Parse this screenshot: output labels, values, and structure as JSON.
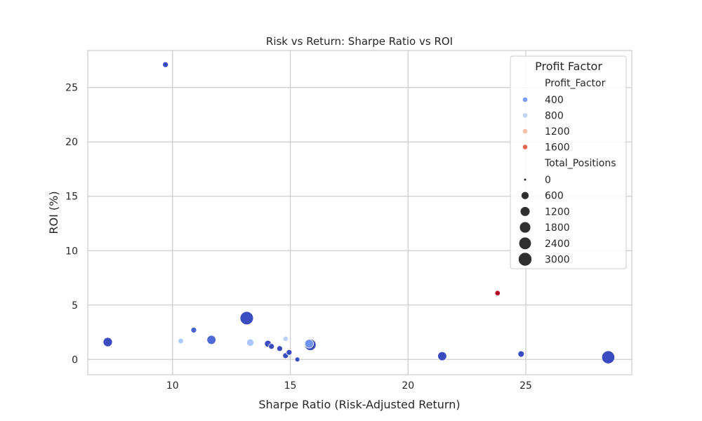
{
  "chart_data": {
    "type": "scatter",
    "title": "Risk vs Return: Sharpe Ratio vs ROI",
    "xlabel": "Sharpe Ratio (Risk-Adjusted Return)",
    "ylabel": "ROI (%)",
    "xlim": [
      6.4,
      29.5
    ],
    "ylim": [
      -1.4,
      28.4
    ],
    "xticks": [
      10,
      15,
      20,
      25
    ],
    "yticks": [
      0,
      5,
      10,
      15,
      20,
      25
    ],
    "grid": true,
    "legend": {
      "title": "Profit Factor",
      "placement": "top-right",
      "hue_title": "Profit_Factor",
      "hue_entries": [
        {
          "label": "400",
          "color": "#7b9ff9"
        },
        {
          "label": "800",
          "color": "#c0d4f5"
        },
        {
          "label": "1200",
          "color": "#f6bfa6"
        },
        {
          "label": "1600",
          "color": "#e26952"
        }
      ],
      "size_title": "Total_Positions",
      "size_entries": [
        {
          "label": "0",
          "value": 0
        },
        {
          "label": "600",
          "value": 600
        },
        {
          "label": "1200",
          "value": 1200
        },
        {
          "label": "1800",
          "value": 1800
        },
        {
          "label": "2400",
          "value": 2400
        },
        {
          "label": "3000",
          "value": 3000
        }
      ]
    },
    "size_range": [
      0,
      3000
    ],
    "points": [
      {
        "x": 9.7,
        "y": 27.1,
        "size": 200,
        "color": "#3b4cc0"
      },
      {
        "x": 10.9,
        "y": 2.7,
        "size": 200,
        "color": "#4a63d3"
      },
      {
        "x": 10.35,
        "y": 1.7,
        "size": 150,
        "color": "#abc8fd"
      },
      {
        "x": 7.25,
        "y": 1.6,
        "size": 1100,
        "color": "#3b4cc0"
      },
      {
        "x": 11.65,
        "y": 1.8,
        "size": 1000,
        "color": "#4f69d9"
      },
      {
        "x": 13.15,
        "y": 3.8,
        "size": 3000,
        "color": "#3b4cc0"
      },
      {
        "x": 13.3,
        "y": 1.55,
        "size": 500,
        "color": "#aac7fd"
      },
      {
        "x": 14.05,
        "y": 1.45,
        "size": 400,
        "color": "#3b4cc0"
      },
      {
        "x": 14.2,
        "y": 1.2,
        "size": 200,
        "color": "#3b4cc0"
      },
      {
        "x": 14.55,
        "y": 1.0,
        "size": 200,
        "color": "#3b4cc0"
      },
      {
        "x": 14.8,
        "y": 1.9,
        "size": 150,
        "color": "#bcd2f7"
      },
      {
        "x": 14.8,
        "y": 0.35,
        "size": 200,
        "color": "#3b4cc0"
      },
      {
        "x": 14.95,
        "y": 0.65,
        "size": 200,
        "color": "#3b4cc0"
      },
      {
        "x": 15.3,
        "y": 0.0,
        "size": 100,
        "color": "#3b4cc0"
      },
      {
        "x": 15.85,
        "y": 1.35,
        "size": 2000,
        "color": "#3b4cc0"
      },
      {
        "x": 15.8,
        "y": 1.45,
        "size": 900,
        "color": "#6f92f3"
      },
      {
        "x": 21.45,
        "y": 0.3,
        "size": 1000,
        "color": "#3b4cc0"
      },
      {
        "x": 23.8,
        "y": 6.1,
        "size": 150,
        "color": "#b40426"
      },
      {
        "x": 24.8,
        "y": 0.5,
        "size": 300,
        "color": "#3b4cc0"
      },
      {
        "x": 28.5,
        "y": 0.2,
        "size": 2800,
        "color": "#3b4cc0"
      }
    ]
  }
}
